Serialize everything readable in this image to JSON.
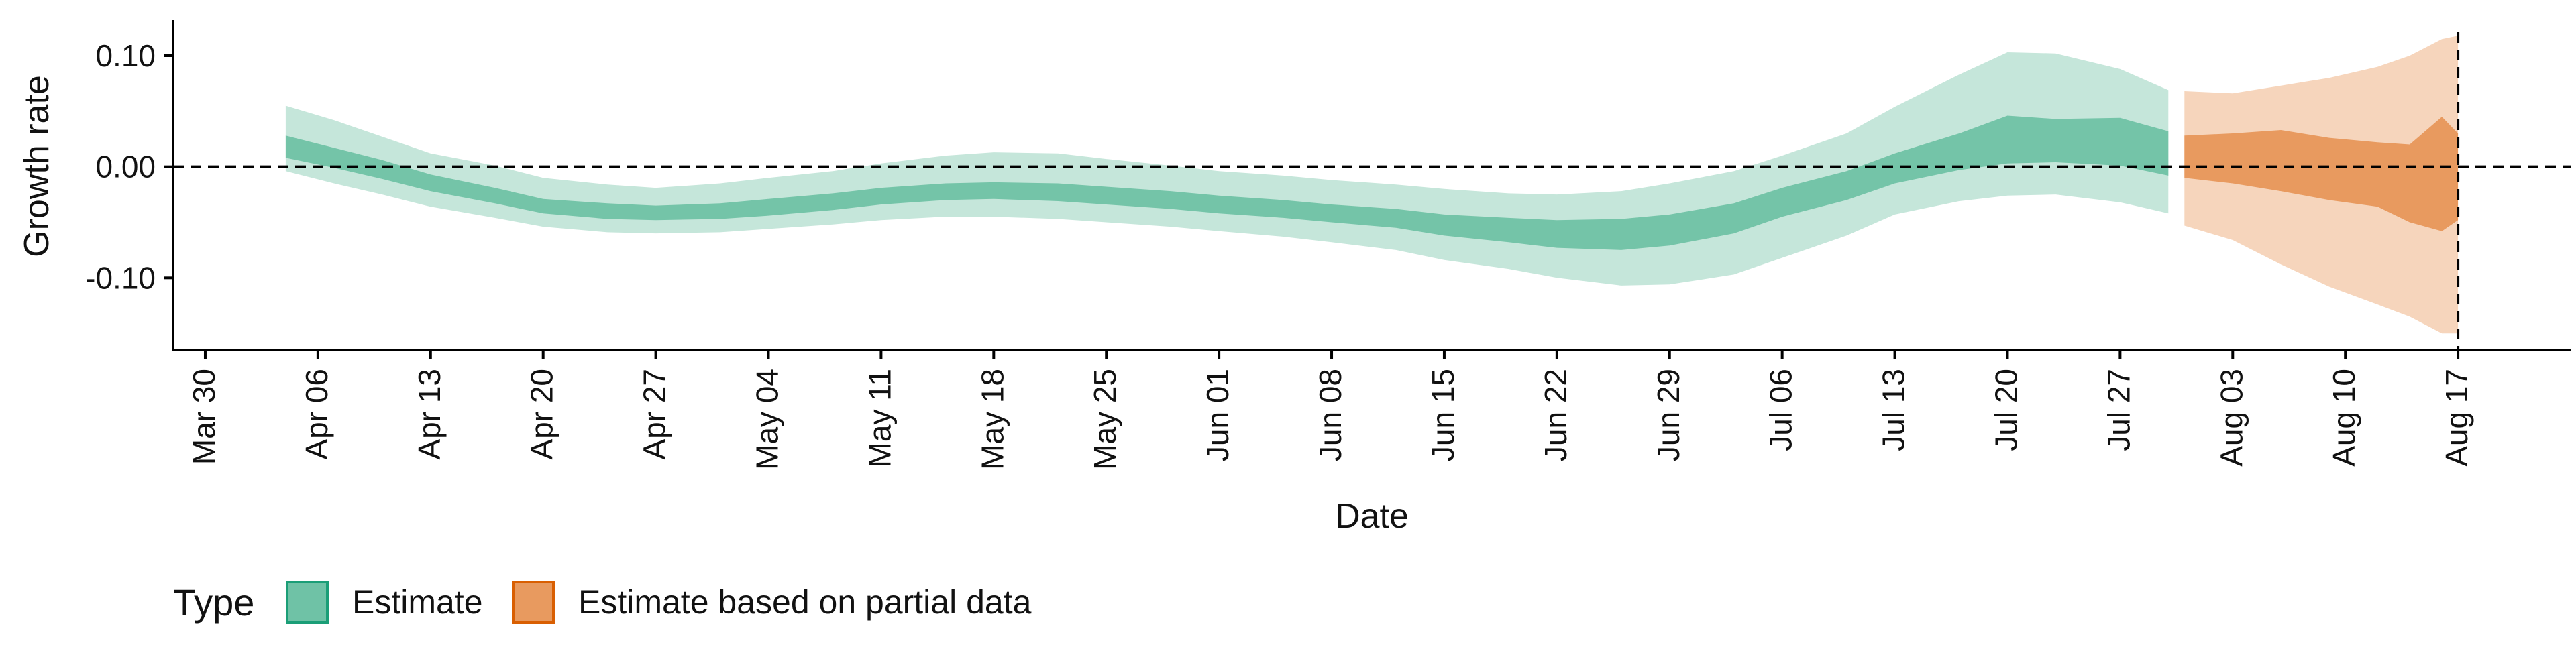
{
  "chart_data": {
    "type": "area",
    "title": "",
    "xlabel": "Date",
    "ylabel": "Growth rate",
    "x_range": [
      "2020-03-28",
      "2020-08-24"
    ],
    "ylim": [
      -0.165,
      0.132
    ],
    "y_ticks": [
      0.1,
      0.0,
      -0.1
    ],
    "y_tick_labels": [
      "0.10",
      "0.00",
      "-0.10"
    ],
    "x_ticks": [
      "2020-03-30",
      "2020-04-06",
      "2020-04-13",
      "2020-04-20",
      "2020-04-27",
      "2020-05-04",
      "2020-05-11",
      "2020-05-18",
      "2020-05-25",
      "2020-06-01",
      "2020-06-08",
      "2020-06-15",
      "2020-06-22",
      "2020-06-29",
      "2020-07-06",
      "2020-07-13",
      "2020-07-20",
      "2020-07-27",
      "2020-08-03",
      "2020-08-10",
      "2020-08-17"
    ],
    "x_tick_labels": [
      "Mar 30",
      "Apr 06",
      "Apr 13",
      "Apr 20",
      "Apr 27",
      "May 04",
      "May 11",
      "May 18",
      "May 25",
      "Jun 01",
      "Jun 08",
      "Jun 15",
      "Jun 22",
      "Jun 29",
      "Jul 06",
      "Jul 13",
      "Jul 20",
      "Jul 27",
      "Aug 03",
      "Aug 10",
      "Aug 17"
    ],
    "reference_lines": {
      "horizontal_y": 0.0,
      "vertical_date": "2020-08-17"
    },
    "grid": false,
    "legend": {
      "title": "Type",
      "position": "bottom-left",
      "entries": [
        {
          "label": "Estimate",
          "color": "#6fc2a6",
          "border": "#1b9e77"
        },
        {
          "label": "Estimate based on partial data",
          "color": "#e89a5f",
          "border": "#d95f02"
        }
      ]
    },
    "series": [
      {
        "name": "Estimate",
        "colors": {
          "inner": "#74c4a8",
          "outer": "#c5e6da"
        },
        "points": [
          {
            "date": "2020-04-04",
            "lo90": -0.004,
            "lo50": 0.008,
            "hi50": 0.028,
            "hi90": 0.055
          },
          {
            "date": "2020-04-07",
            "lo90": -0.015,
            "lo50": -0.001,
            "hi50": 0.017,
            "hi90": 0.042
          },
          {
            "date": "2020-04-10",
            "lo90": -0.025,
            "lo50": -0.011,
            "hi50": 0.006,
            "hi90": 0.027
          },
          {
            "date": "2020-04-13",
            "lo90": -0.036,
            "lo50": -0.022,
            "hi50": -0.007,
            "hi90": 0.012
          },
          {
            "date": "2020-04-17",
            "lo90": -0.046,
            "lo50": -0.033,
            "hi50": -0.019,
            "hi90": 0.001
          },
          {
            "date": "2020-04-20",
            "lo90": -0.054,
            "lo50": -0.042,
            "hi50": -0.029,
            "hi90": -0.01
          },
          {
            "date": "2020-04-24",
            "lo90": -0.059,
            "lo50": -0.047,
            "hi50": -0.033,
            "hi90": -0.016
          },
          {
            "date": "2020-04-27",
            "lo90": -0.06,
            "lo50": -0.048,
            "hi50": -0.035,
            "hi90": -0.019
          },
          {
            "date": "2020-05-01",
            "lo90": -0.059,
            "lo50": -0.047,
            "hi50": -0.033,
            "hi90": -0.015
          },
          {
            "date": "2020-05-04",
            "lo90": -0.056,
            "lo50": -0.044,
            "hi50": -0.029,
            "hi90": -0.01
          },
          {
            "date": "2020-05-08",
            "lo90": -0.052,
            "lo50": -0.039,
            "hi50": -0.024,
            "hi90": -0.004
          },
          {
            "date": "2020-05-11",
            "lo90": -0.048,
            "lo50": -0.034,
            "hi50": -0.019,
            "hi90": 0.003
          },
          {
            "date": "2020-05-15",
            "lo90": -0.045,
            "lo50": -0.03,
            "hi50": -0.015,
            "hi90": 0.01
          },
          {
            "date": "2020-05-18",
            "lo90": -0.045,
            "lo50": -0.029,
            "hi50": -0.014,
            "hi90": 0.013
          },
          {
            "date": "2020-05-22",
            "lo90": -0.047,
            "lo50": -0.031,
            "hi50": -0.015,
            "hi90": 0.012
          },
          {
            "date": "2020-05-25",
            "lo90": -0.05,
            "lo50": -0.034,
            "hi50": -0.018,
            "hi90": 0.007
          },
          {
            "date": "2020-05-29",
            "lo90": -0.054,
            "lo50": -0.038,
            "hi50": -0.022,
            "hi90": 0.001
          },
          {
            "date": "2020-06-01",
            "lo90": -0.058,
            "lo50": -0.042,
            "hi50": -0.026,
            "hi90": -0.004
          },
          {
            "date": "2020-06-05",
            "lo90": -0.063,
            "lo50": -0.046,
            "hi50": -0.03,
            "hi90": -0.008
          },
          {
            "date": "2020-06-08",
            "lo90": -0.068,
            "lo50": -0.05,
            "hi50": -0.034,
            "hi90": -0.012
          },
          {
            "date": "2020-06-12",
            "lo90": -0.075,
            "lo50": -0.055,
            "hi50": -0.038,
            "hi90": -0.016
          },
          {
            "date": "2020-06-15",
            "lo90": -0.084,
            "lo50": -0.062,
            "hi50": -0.043,
            "hi90": -0.02
          },
          {
            "date": "2020-06-19",
            "lo90": -0.092,
            "lo50": -0.068,
            "hi50": -0.046,
            "hi90": -0.024
          },
          {
            "date": "2020-06-22",
            "lo90": -0.1,
            "lo50": -0.073,
            "hi50": -0.048,
            "hi90": -0.025
          },
          {
            "date": "2020-06-26",
            "lo90": -0.107,
            "lo50": -0.075,
            "hi50": -0.047,
            "hi90": -0.022
          },
          {
            "date": "2020-06-29",
            "lo90": -0.106,
            "lo50": -0.071,
            "hi50": -0.043,
            "hi90": -0.015
          },
          {
            "date": "2020-07-03",
            "lo90": -0.097,
            "lo50": -0.06,
            "hi50": -0.033,
            "hi90": -0.004
          },
          {
            "date": "2020-07-06",
            "lo90": -0.082,
            "lo50": -0.045,
            "hi50": -0.019,
            "hi90": 0.01
          },
          {
            "date": "2020-07-10",
            "lo90": -0.062,
            "lo50": -0.03,
            "hi50": -0.004,
            "hi90": 0.03
          },
          {
            "date": "2020-07-13",
            "lo90": -0.043,
            "lo50": -0.015,
            "hi50": 0.012,
            "hi90": 0.054
          },
          {
            "date": "2020-07-17",
            "lo90": -0.031,
            "lo50": -0.003,
            "hi50": 0.03,
            "hi90": 0.083
          },
          {
            "date": "2020-07-20",
            "lo90": -0.026,
            "lo50": 0.003,
            "hi50": 0.046,
            "hi90": 0.103
          },
          {
            "date": "2020-07-23",
            "lo90": -0.025,
            "lo50": 0.004,
            "hi50": 0.043,
            "hi90": 0.102
          },
          {
            "date": "2020-07-27",
            "lo90": -0.032,
            "lo50": 0.001,
            "hi50": 0.044,
            "hi90": 0.088
          },
          {
            "date": "2020-07-30",
            "lo90": -0.042,
            "lo50": -0.008,
            "hi50": 0.032,
            "hi90": 0.069
          }
        ]
      },
      {
        "name": "Estimate based on partial data",
        "colors": {
          "inner": "#e89a5f",
          "outer": "#f6d5bc"
        },
        "points": [
          {
            "date": "2020-07-31",
            "lo90": -0.053,
            "lo50": -0.01,
            "hi50": 0.028,
            "hi90": 0.068
          },
          {
            "date": "2020-08-03",
            "lo90": -0.066,
            "lo50": -0.015,
            "hi50": 0.03,
            "hi90": 0.066
          },
          {
            "date": "2020-08-06",
            "lo90": -0.088,
            "lo50": -0.022,
            "hi50": 0.033,
            "hi90": 0.073
          },
          {
            "date": "2020-08-09",
            "lo90": -0.108,
            "lo50": -0.03,
            "hi50": 0.026,
            "hi90": 0.08
          },
          {
            "date": "2020-08-12",
            "lo90": -0.124,
            "lo50": -0.036,
            "hi50": 0.022,
            "hi90": 0.09
          },
          {
            "date": "2020-08-14",
            "lo90": -0.135,
            "lo50": -0.05,
            "hi50": 0.02,
            "hi90": 0.1
          },
          {
            "date": "2020-08-16",
            "lo90": -0.15,
            "lo50": -0.058,
            "hi50": 0.045,
            "hi90": 0.115
          },
          {
            "date": "2020-08-17",
            "lo90": -0.15,
            "lo50": -0.048,
            "hi50": 0.03,
            "hi90": 0.118
          }
        ]
      }
    ]
  }
}
